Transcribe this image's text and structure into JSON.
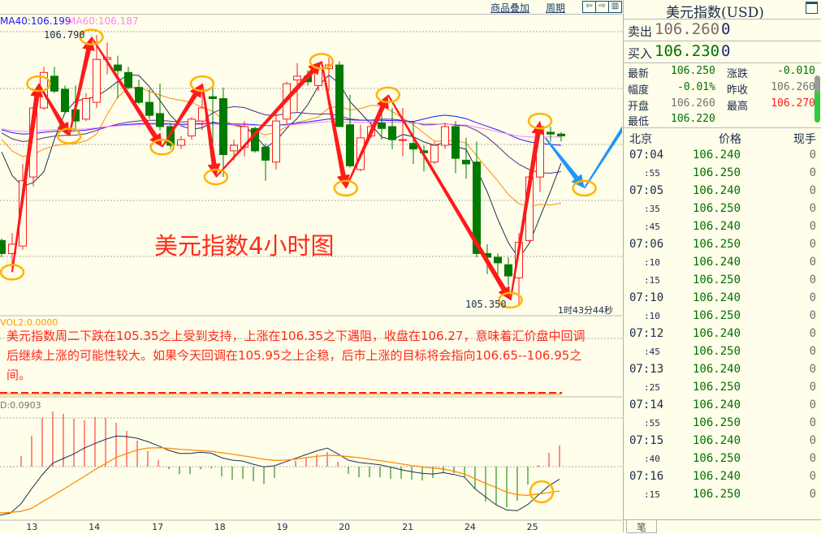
{
  "toolbar": {
    "overlay_label": "商品叠加",
    "period_label": "周期",
    "btn_left": "⇦",
    "btn_right": "⇨",
    "btn_layout": "▥"
  },
  "indicators": {
    "ma40": "MA40:106.199",
    "ma60": "MA60:106.187",
    "vol": "VOL2:0.0000",
    "macd": "D:0.0903"
  },
  "chart_annotations": {
    "high_label": "106.790",
    "low_label": "105.350",
    "title_overlay": "美元指数4小时图",
    "countdown": "1时43分44秒"
  },
  "comment": "美元指数周二下跌在105.35之上受到支持，上涨在106.35之下遇阻，收盘在106.27，意味着汇价盘中回调后继续上涨的可能性较大。如果今天回调在105.95之上企稳，后市上涨的目标将会指向106.65--106.95之间。",
  "colors": {
    "up": "#ff1a1a",
    "down": "#007a00",
    "ma5": "#1a3050",
    "ma10": "#ff8c00",
    "ma20": "#5a2a8a",
    "ma40": "#1a1aff",
    "ma60": "#ff80ff",
    "arrow": "#ff1a1a",
    "forecast_arrow": "#2196f3",
    "circle": "#ffb400",
    "background": "#fffeea"
  },
  "chart_data": {
    "type": "candlestick",
    "period": "4h",
    "x_tick_labels": [
      "13",
      "14",
      "17",
      "18",
      "19",
      "20",
      "21",
      "24",
      "25"
    ],
    "x_tick_candle_index": [
      2.8,
      8.7,
      14.7,
      20.6,
      26.5,
      32.4,
      38.4,
      44.3,
      50.2
    ],
    "ylim": [
      105.3,
      106.85
    ],
    "candles": [
      [
        105.69,
        105.7,
        105.6,
        105.62
      ],
      [
        105.62,
        105.73,
        105.53,
        105.67
      ],
      [
        105.66,
        106.1,
        105.64,
        106.01
      ],
      [
        106.03,
        106.41,
        105.98,
        106.4
      ],
      [
        106.4,
        106.62,
        106.39,
        106.59
      ],
      [
        106.57,
        106.62,
        106.48,
        106.49
      ],
      [
        106.5,
        106.52,
        106.37,
        106.38
      ],
      [
        106.39,
        106.52,
        106.28,
        106.33
      ],
      [
        106.34,
        106.48,
        106.33,
        106.45
      ],
      [
        106.43,
        106.79,
        106.4,
        106.66
      ],
      [
        106.66,
        106.75,
        106.58,
        106.67
      ],
      [
        106.63,
        106.68,
        106.45,
        106.6
      ],
      [
        106.59,
        106.62,
        106.5,
        106.51
      ],
      [
        106.51,
        106.55,
        106.42,
        106.43
      ],
      [
        106.43,
        106.5,
        106.34,
        106.36
      ],
      [
        106.37,
        106.53,
        106.28,
        106.3
      ],
      [
        106.3,
        106.32,
        106.18,
        106.2
      ],
      [
        106.2,
        106.25,
        106.18,
        106.23
      ],
      [
        106.25,
        106.35,
        106.23,
        106.34
      ],
      [
        106.33,
        106.49,
        106.28,
        106.4
      ],
      [
        106.46,
        106.51,
        106.1,
        106.45
      ],
      [
        106.45,
        106.51,
        106.03,
        106.15
      ],
      [
        106.17,
        106.23,
        106.12,
        106.2
      ],
      [
        106.19,
        106.33,
        106.14,
        106.3
      ],
      [
        106.29,
        106.3,
        106.16,
        106.17
      ],
      [
        106.19,
        106.21,
        106.01,
        106.12
      ],
      [
        106.11,
        106.39,
        106.07,
        106.33
      ],
      [
        106.34,
        106.54,
        106.31,
        106.53
      ],
      [
        106.55,
        106.64,
        106.38,
        106.57
      ],
      [
        106.57,
        106.6,
        106.52,
        106.54
      ],
      [
        106.52,
        106.62,
        106.49,
        106.61
      ],
      [
        106.61,
        106.67,
        106.49,
        106.63
      ],
      [
        106.63,
        106.65,
        106.3,
        106.3
      ],
      [
        106.31,
        106.47,
        106.08,
        106.09
      ],
      [
        106.07,
        106.31,
        106.06,
        106.24
      ],
      [
        106.25,
        106.33,
        106.24,
        106.3
      ],
      [
        106.32,
        106.38,
        106.23,
        106.29
      ],
      [
        106.3,
        106.4,
        106.18,
        106.23
      ],
      [
        106.23,
        106.4,
        106.14,
        106.23
      ],
      [
        106.21,
        106.32,
        106.1,
        106.18
      ],
      [
        106.17,
        106.2,
        106.06,
        106.16
      ],
      [
        106.11,
        106.22,
        106.1,
        106.2
      ],
      [
        106.2,
        106.32,
        106.18,
        106.3
      ],
      [
        106.3,
        106.33,
        106.05,
        106.13
      ],
      [
        106.12,
        106.24,
        106.02,
        106.1
      ],
      [
        106.11,
        106.22,
        105.6,
        105.62
      ],
      [
        105.62,
        105.67,
        105.51,
        105.6
      ],
      [
        105.6,
        105.62,
        105.5,
        105.57
      ],
      [
        105.56,
        105.6,
        105.45,
        105.5
      ],
      [
        105.49,
        105.73,
        105.35,
        105.68
      ],
      [
        105.69,
        106.06,
        105.68,
        106.03
      ],
      [
        106.03,
        106.33,
        105.95,
        106.3
      ],
      [
        106.27,
        106.3,
        106.22,
        106.26
      ],
      [
        106.26,
        106.27,
        106.22,
        106.25
      ]
    ],
    "moving_averages": [
      "MA5",
      "MA10",
      "MA20",
      "MA40",
      "MA60"
    ],
    "macd": {
      "dif": [
        -0.209,
        -0.2,
        -0.16,
        -0.095,
        -0.035,
        0.015,
        0.035,
        0.055,
        0.08,
        0.1,
        0.118,
        0.132,
        0.13,
        0.122,
        0.108,
        0.09,
        0.07,
        0.057,
        0.057,
        0.062,
        0.058,
        0.038,
        0.028,
        0.024,
        0.01,
        -0.001,
        0.004,
        0.02,
        0.036,
        0.052,
        0.068,
        0.08,
        0.055,
        0.028,
        0.018,
        0.013,
        0.008,
        -0.002,
        -0.013,
        -0.022,
        -0.029,
        -0.032,
        -0.026,
        -0.034,
        -0.045,
        -0.096,
        -0.131,
        -0.165,
        -0.187,
        -0.19,
        -0.163,
        -0.122,
        -0.083,
        -0.054
      ],
      "dea": [
        -0.199,
        -0.197,
        -0.193,
        -0.18,
        -0.152,
        -0.125,
        -0.098,
        -0.07,
        -0.042,
        -0.013,
        0.013,
        0.04,
        0.056,
        0.072,
        0.08,
        0.082,
        0.079,
        0.075,
        0.072,
        0.069,
        0.066,
        0.06,
        0.054,
        0.047,
        0.04,
        0.032,
        0.027,
        0.028,
        0.032,
        0.039,
        0.044,
        0.049,
        0.048,
        0.043,
        0.039,
        0.032,
        0.026,
        0.019,
        0.012,
        0.005,
        -0.001,
        -0.006,
        -0.01,
        -0.02,
        -0.032,
        -0.052,
        -0.072,
        -0.09,
        -0.11,
        -0.121,
        -0.124,
        -0.118,
        -0.112,
        -0.105
      ],
      "hist": [
        0,
        -0.002,
        0.045,
        0.133,
        0.21,
        0.238,
        0.228,
        0.207,
        0.2,
        0.214,
        0.21,
        0.189,
        0.154,
        0.112,
        0.067,
        0.028,
        -0.011,
        -0.032,
        -0.032,
        -0.011,
        -0.007,
        -0.042,
        -0.056,
        -0.053,
        -0.063,
        -0.074,
        -0.049,
        0.001,
        0.025,
        0.039,
        0.053,
        0.063,
        0.021,
        -0.032,
        -0.046,
        -0.046,
        -0.046,
        -0.053,
        -0.053,
        -0.056,
        -0.06,
        -0.049,
        -0.028,
        -0.028,
        -0.046,
        -0.098,
        -0.151,
        -0.165,
        -0.175,
        -0.147,
        -0.077,
        0.007,
        0.06,
        0.091
      ]
    }
  },
  "quote": {
    "title": "美元指数(USD)",
    "sell_label": "卖出",
    "sell_price": "106.260",
    "sell_vol": "0",
    "buy_label": "买入",
    "buy_price": "106.230",
    "buy_vol": "0",
    "latest_label": "最新",
    "latest": "106.250",
    "change_label": "涨跌",
    "change": "-0.010",
    "pct_label": "幅度",
    "pct": "-0.01%",
    "prev_label": "昨收",
    "prev": "106.260",
    "open_label": "开盘",
    "open": "106.260",
    "high_label": "最高",
    "high": "106.270",
    "low_label": "最低",
    "low": "106.220"
  },
  "ticks": {
    "headers": [
      "北京",
      "价格",
      "现手"
    ],
    "rows": [
      {
        "time": "07:04",
        "price": "106.240",
        "vol": "0"
      },
      {
        "time": ":55",
        "price": "106.250",
        "vol": "0"
      },
      {
        "time": "07:05",
        "price": "106.240",
        "vol": "0"
      },
      {
        "time": ":35",
        "price": "106.250",
        "vol": "0"
      },
      {
        "time": ":45",
        "price": "106.240",
        "vol": "0"
      },
      {
        "time": "07:06",
        "price": "106.250",
        "vol": "0"
      },
      {
        "time": ":10",
        "price": "106.240",
        "vol": "0"
      },
      {
        "time": ":15",
        "price": "106.250",
        "vol": "0"
      },
      {
        "time": "07:10",
        "price": "106.240",
        "vol": "0"
      },
      {
        "time": ":10",
        "price": "106.250",
        "vol": "0"
      },
      {
        "time": "07:12",
        "price": "106.240",
        "vol": "0"
      },
      {
        "time": ":45",
        "price": "106.250",
        "vol": "0"
      },
      {
        "time": "07:13",
        "price": "106.240",
        "vol": "0"
      },
      {
        "time": ":25",
        "price": "106.250",
        "vol": "0"
      },
      {
        "time": "07:14",
        "price": "106.240",
        "vol": "0"
      },
      {
        "time": ":55",
        "price": "106.250",
        "vol": "0"
      },
      {
        "time": "07:15",
        "price": "106.240",
        "vol": "0"
      },
      {
        "time": ":40",
        "price": "106.250",
        "vol": "0"
      },
      {
        "time": "07:16",
        "price": "106.240",
        "vol": "0"
      },
      {
        "time": ":15",
        "price": "106.250",
        "vol": "0"
      }
    ],
    "tab_label": "笔"
  }
}
